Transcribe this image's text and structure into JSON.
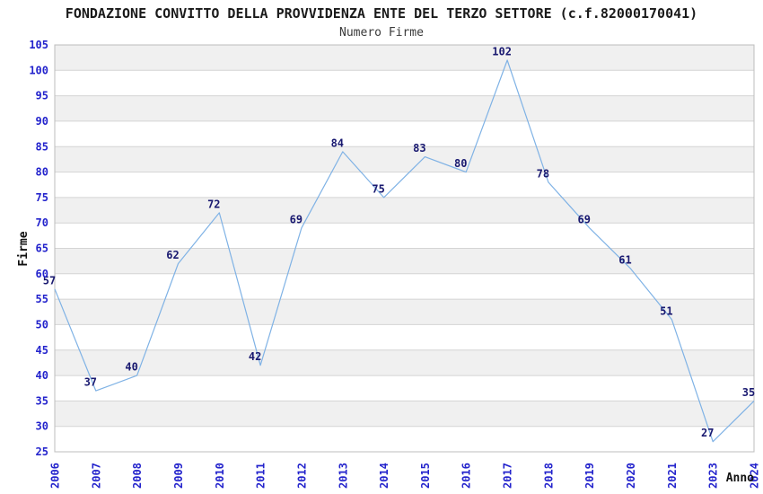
{
  "colors": {
    "line": "#7fb2e5",
    "tick_label": "#2323cc",
    "data_label": "#191970",
    "band": "#f0f0f0",
    "grid": "#d4d4d4",
    "plot_border": "#bdbdbd",
    "background": "#ffffff"
  },
  "chart_data": {
    "type": "line",
    "title": "FONDAZIONE CONVITTO DELLA PROVVIDENZA ENTE DEL TERZO SETTORE (c.f.82000170041)",
    "subtitle": "Numero Firme",
    "xlabel": "Anno",
    "ylabel": "Firme",
    "categories": [
      "2006",
      "2007",
      "2008",
      "2009",
      "2010",
      "2011",
      "2012",
      "2013",
      "2014",
      "2015",
      "2016",
      "2017",
      "2018",
      "2019",
      "2020",
      "2021",
      "2023",
      "2024"
    ],
    "values": [
      57,
      37,
      40,
      62,
      72,
      42,
      69,
      84,
      75,
      83,
      80,
      102,
      78,
      69,
      61,
      51,
      27,
      35
    ],
    "ylim": [
      25,
      105
    ],
    "ytick_step": 5,
    "yticks": [
      25,
      30,
      35,
      40,
      45,
      50,
      55,
      60,
      65,
      70,
      75,
      80,
      85,
      90,
      95,
      100,
      105
    ],
    "grid": "horizontal alternating bands, gridline at every y tick, no vertical gridlines",
    "legend": "none",
    "point_markers": "none, values labeled above-left of each vertex"
  }
}
